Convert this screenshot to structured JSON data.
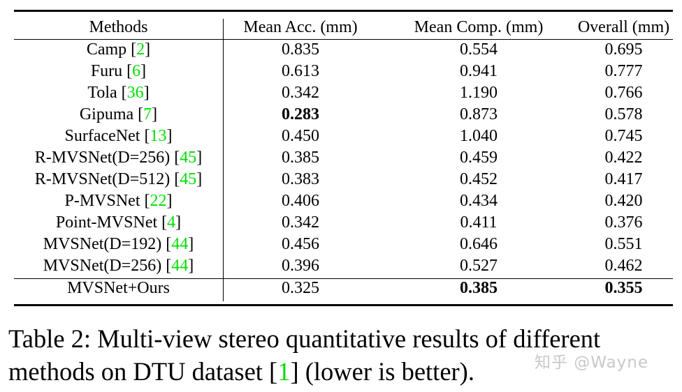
{
  "table": {
    "headers": [
      "Methods",
      "Mean Acc. (mm)",
      "Mean Comp. (mm)",
      "Overall (mm)"
    ],
    "rows": [
      {
        "method": "Camp",
        "cite": "2",
        "acc": "0.835",
        "comp": "0.554",
        "overall": "0.695",
        "bold": []
      },
      {
        "method": "Furu",
        "cite": "6",
        "acc": "0.613",
        "comp": "0.941",
        "overall": "0.777",
        "bold": []
      },
      {
        "method": "Tola",
        "cite": "36",
        "acc": "0.342",
        "comp": "1.190",
        "overall": "0.766",
        "bold": []
      },
      {
        "method": "Gipuma",
        "cite": "7",
        "acc": "0.283",
        "comp": "0.873",
        "overall": "0.578",
        "bold": [
          "acc"
        ]
      },
      {
        "method": "SurfaceNet",
        "cite": "13",
        "acc": "0.450",
        "comp": "1.040",
        "overall": "0.745",
        "bold": []
      },
      {
        "method": "R-MVSNet(D=256)",
        "cite": "45",
        "acc": "0.385",
        "comp": "0.459",
        "overall": "0.422",
        "bold": []
      },
      {
        "method": "R-MVSNet(D=512)",
        "cite": "45",
        "acc": "0.383",
        "comp": "0.452",
        "overall": "0.417",
        "bold": []
      },
      {
        "method": "P-MVSNet",
        "cite": "22",
        "acc": "0.406",
        "comp": "0.434",
        "overall": "0.420",
        "bold": []
      },
      {
        "method": "Point-MVSNet",
        "cite": "4",
        "acc": "0.342",
        "comp": "0.411",
        "overall": "0.376",
        "bold": []
      },
      {
        "method": "MVSNet(D=192)",
        "cite": "44",
        "acc": "0.456",
        "comp": "0.646",
        "overall": "0.551",
        "bold": []
      },
      {
        "method": "MVSNet(D=256)",
        "cite": "44",
        "acc": "0.396",
        "comp": "0.527",
        "overall": "0.462",
        "bold": []
      },
      {
        "method": "MVSNet+Ours",
        "cite": "",
        "acc": "0.325",
        "comp": "0.385",
        "overall": "0.355",
        "bold": [
          "comp",
          "overall"
        ]
      }
    ]
  },
  "caption": {
    "line1": "Table 2: Multi-view stereo quantitative results of different",
    "line2_pre": "methods on DTU dataset [",
    "line2_cite": "1",
    "line2_post": "] (lower is better)."
  },
  "watermark": "知乎 @Wayne",
  "colors": {
    "citation": "#00dd00",
    "watermark": "#c8c8c8"
  }
}
